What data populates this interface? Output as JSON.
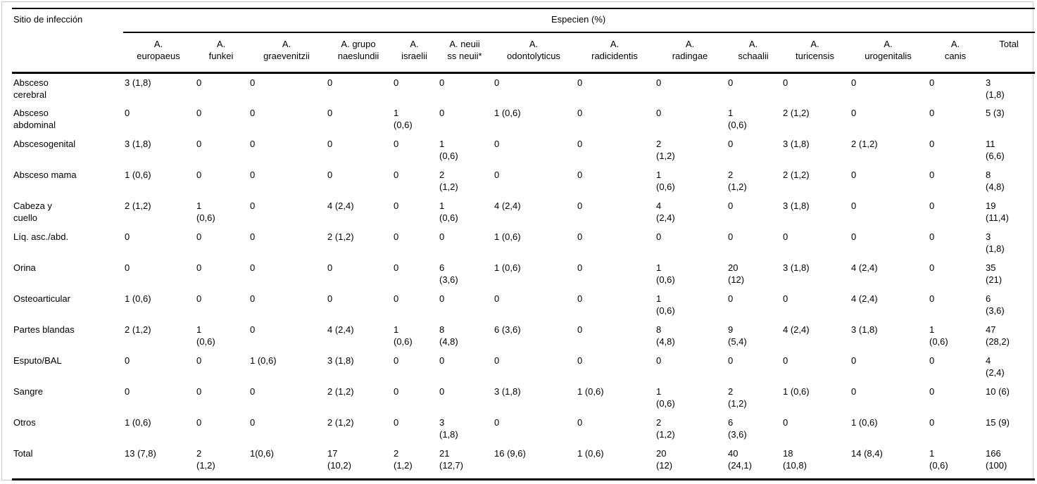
{
  "table": {
    "corner_header": "Sitio de infección",
    "group_header": "Especien (%)",
    "columns": [
      "A.\neuropaeus",
      "A.\nfunkei",
      "A.\ngraevenitzii",
      "A. grupo\nnaeslundii",
      "A.\nisraelii",
      "A. neuii\nss neuii*",
      "A.\nodontolyticus",
      "A.\nradicidentis",
      "A.\nradingae",
      "A.\nschaalii",
      "A.\nturicensis",
      "A.\nurogenitalis",
      "A.\ncanis",
      "Total"
    ],
    "rows": [
      {
        "label": "Absceso\ncerebral",
        "values": [
          "3 (1,8)",
          "0",
          "0",
          "0",
          "0",
          "0",
          "0",
          "0",
          "0",
          "0",
          "0",
          "0",
          "0",
          "3\n(1,8)"
        ]
      },
      {
        "label": "Absceso\nabdominal",
        "values": [
          "0",
          "0",
          "0",
          "0",
          "1\n(0,6)",
          "0",
          "1 (0,6)",
          "0",
          "0",
          "1\n(0,6)",
          "2 (1,2)",
          "0",
          "0",
          "5 (3)"
        ]
      },
      {
        "label": "Abscesogenital",
        "values": [
          "3 (1,8)",
          "0",
          "0",
          "0",
          "0",
          "1\n(0,6)",
          "0",
          "0",
          "2\n(1,2)",
          "0",
          "3 (1,8)",
          "2 (1,2)",
          "0",
          "11\n(6,6)"
        ]
      },
      {
        "label": "Absceso mama",
        "values": [
          "1 (0,6)",
          "0",
          "0",
          "0",
          "0",
          "2\n(1,2)",
          "0",
          "0",
          "1\n(0,6)",
          "2\n(1,2)",
          "2 (1,2)",
          "0",
          "0",
          "8\n(4,8)"
        ]
      },
      {
        "label": "Cabeza y\ncuello",
        "values": [
          "2 (1,2)",
          "1\n(0,6)",
          "0",
          "4 (2,4)",
          "0",
          "1\n(0,6)",
          "4 (2,4)",
          "0",
          "4\n(2,4)",
          "0",
          "3 (1,8)",
          "0",
          "0",
          "19\n(11,4)"
        ]
      },
      {
        "label": "Líq. asc./abd.",
        "values": [
          "0",
          "0",
          "0",
          "2 (1,2)",
          "0",
          "0",
          "1 (0,6)",
          "0",
          "0",
          "0",
          "0",
          "0",
          "0",
          "3\n(1,8)"
        ]
      },
      {
        "label": "Orina",
        "values": [
          "0",
          "0",
          "0",
          "0",
          "0",
          "6\n(3,6)",
          "1 (0,6)",
          "0",
          "1\n(0,6)",
          "20\n(12)",
          "3 (1,8)",
          "4 (2,4)",
          "0",
          "35\n(21)"
        ]
      },
      {
        "label": "Osteoarticular",
        "values": [
          "1 (0,6)",
          "0",
          "0",
          "0",
          "0",
          "0",
          "0",
          "0",
          "1\n(0,6)",
          "0",
          "0",
          "4 (2,4)",
          "0",
          "6\n(3,6)"
        ]
      },
      {
        "label": "Partes blandas",
        "values": [
          "2 (1,2)",
          "1\n(0,6)",
          "0",
          "4 (2,4)",
          "1\n(0,6)",
          "8\n(4,8)",
          "6 (3,6)",
          "0",
          "8\n(4,8)",
          "9\n(5,4)",
          "4 (2,4)",
          "3 (1,8)",
          "1\n(0,6)",
          "47\n(28,2)"
        ]
      },
      {
        "label": "Esputo/BAL",
        "values": [
          "0",
          "0",
          "1 (0,6)",
          "3 (1,8)",
          "0",
          "0",
          "0",
          "0",
          "0",
          "0",
          "0",
          "0",
          "0",
          "4\n(2,4)"
        ]
      },
      {
        "label": "Sangre",
        "values": [
          "0",
          "0",
          "0",
          "2 (1,2)",
          "0",
          "0",
          "3 (1,8)",
          "1 (0,6)",
          "1\n(0,6)",
          "2\n(1,2)",
          "1 (0,6)",
          "0",
          "0",
          "10 (6)"
        ]
      },
      {
        "label": "Otros",
        "values": [
          "1 (0,6)",
          "0",
          "0",
          "2 (1,2)",
          "0",
          "3\n(1,8)",
          "0",
          "0",
          "2\n(1,2)",
          "6\n(3,6)",
          "0",
          "1 (0,6)",
          "0",
          "15 (9)"
        ]
      },
      {
        "label": "Total",
        "values": [
          "13 (7,8)",
          "2\n(1,2)",
          "1(0,6)",
          "17\n(10,2)",
          "2\n(1,2)",
          "21\n(12,7)",
          "16 (9,6)",
          "1 (0,6)",
          "20\n(12)",
          "40\n(24,1)",
          "18\n(10,8)",
          "14 (8,4)",
          "1\n(0,6)",
          "166\n(100)"
        ]
      }
    ]
  }
}
